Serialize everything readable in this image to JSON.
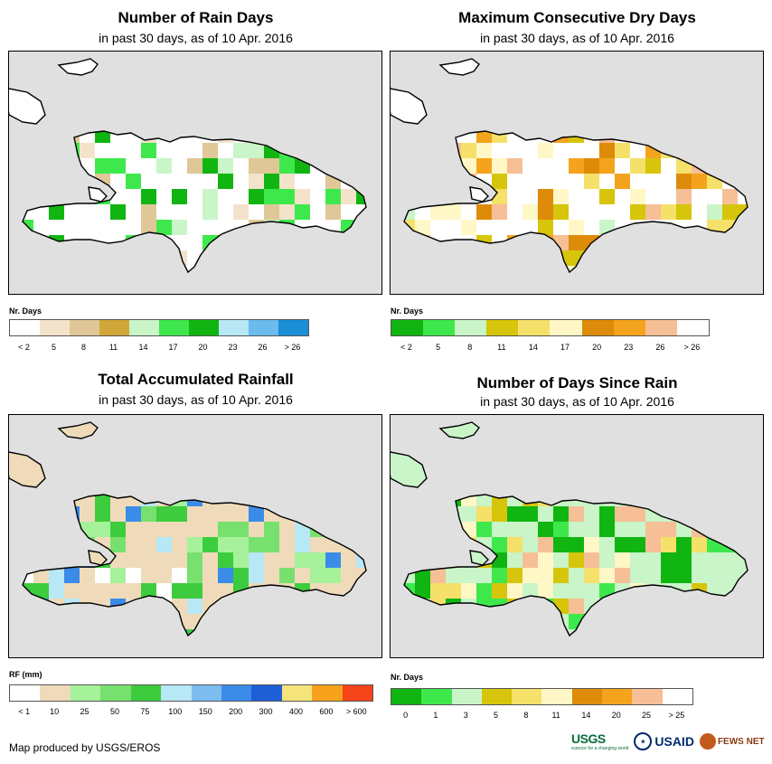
{
  "credit": "Map produced by USGS/EROS",
  "logos": {
    "usgs": "USGS",
    "usgs_tag": "science for a changing world",
    "usaid": "USAID",
    "fews": "FEWS NET"
  },
  "panels": [
    {
      "id": "rain-days",
      "title": "Number of Rain Days",
      "subtitle": "in past 30 days, as of 10 Apr. 2016",
      "legend_title": "Nr. Days",
      "legend_colors": [
        "#ffffff",
        "#f3e3cb",
        "#e0c797",
        "#d2a73a",
        "#c9f5c9",
        "#3ee84c",
        "#11b511",
        "#b8e7f5",
        "#6bbcee",
        "#1a8ed6"
      ],
      "legend_labels": [
        "< 2",
        "5",
        "8",
        "11",
        "14",
        "17",
        "20",
        "23",
        "26",
        "> 26"
      ]
    },
    {
      "id": "max-dry-days",
      "title": "Maximum Consecutive Dry Days",
      "subtitle": "in past 30 days, as of 10 Apr. 2016",
      "legend_title": "Nr. Days",
      "legend_colors": [
        "#11b511",
        "#3ee84c",
        "#c9f5c9",
        "#d6c50a",
        "#f5e06a",
        "#fff7c6",
        "#de8b0a",
        "#f4a41c",
        "#f6bf95",
        "#ffffff"
      ],
      "legend_labels": [
        "< 2",
        "5",
        "8",
        "11",
        "14",
        "17",
        "20",
        "23",
        "26",
        "> 26"
      ]
    },
    {
      "id": "total-rainfall",
      "title": "Total Accumulated Rainfall",
      "subtitle": "in past 30 days, as of 10 Apr. 2016",
      "legend_title": "RF (mm)",
      "legend_colors": [
        "#ffffff",
        "#efdbb9",
        "#a5f29b",
        "#78e06e",
        "#3dcc3d",
        "#b8e7f5",
        "#7cbcef",
        "#3b8ce8",
        "#1e5fd6",
        "#f5e47a",
        "#f7a21c",
        "#f5431a"
      ],
      "legend_labels": [
        "< 1",
        "10",
        "25",
        "50",
        "75",
        "100",
        "150",
        "200",
        "300",
        "400",
        "600",
        "> 600"
      ]
    },
    {
      "id": "days-since-rain",
      "title": "Number of Days Since Rain",
      "subtitle": "in past 30 days, as of 10 Apr. 2016",
      "legend_title": "Nr. Days",
      "legend_colors": [
        "#11b511",
        "#3ee84c",
        "#c9f5c9",
        "#d6c50a",
        "#f5e06a",
        "#fff7c6",
        "#de8b0a",
        "#f4a41c",
        "#f6bf95",
        "#ffffff"
      ],
      "legend_labels": [
        "0",
        "1",
        "3",
        "5",
        "8",
        "11",
        "14",
        "20",
        "25",
        "> 25"
      ]
    }
  ]
}
